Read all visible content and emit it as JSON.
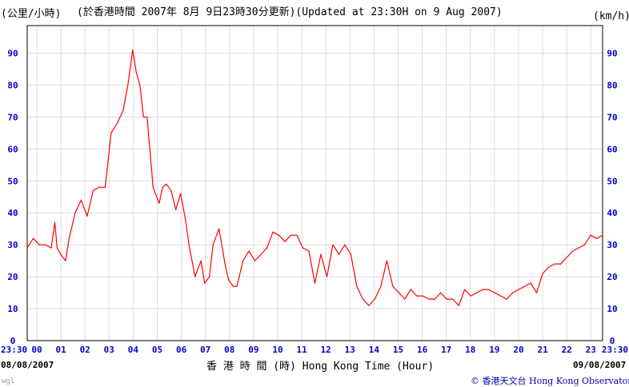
{
  "header": {
    "unit_left": "(公里/小時)",
    "title": "(於香港時間 2007年 8月 9日23時30分更新)(Updated at 23:30H on 9 Aug 2007)",
    "unit_right": "(km/h)"
  },
  "footer": {
    "date_left": "08/08/2007",
    "date_right": "09/08/2007",
    "xlabel": "香 港 時 間 (時) Hong Kong Time (Hour)",
    "credit": "© 香港天文台 Hong Kong Observatory",
    "tag": "wgl"
  },
  "colors": {
    "line": "#ff0000",
    "ticks": "#0000cc",
    "grid": "#dddddd"
  },
  "chart_data": {
    "type": "line",
    "title": "(於香港時間 2007年 8月 9日23時30分更新)(Updated at 23:30H on 9 Aug 2007)",
    "xlabel": "香 港 時 間 (時) Hong Kong Time (Hour)",
    "ylabel": "(公里/小時) / (km/h)",
    "ylim": [
      0,
      95
    ],
    "xlim": [
      0,
      24
    ],
    "grid": true,
    "x_tick_labels": [
      "23:30",
      "00",
      "01",
      "02",
      "03",
      "04",
      "05",
      "06",
      "07",
      "08",
      "09",
      "10",
      "11",
      "12",
      "13",
      "14",
      "15",
      "16",
      "17",
      "18",
      "19",
      "20",
      "21",
      "22",
      "23",
      "23:30"
    ],
    "y_ticks": [
      0,
      10,
      20,
      30,
      40,
      50,
      60,
      70,
      80,
      90
    ],
    "series": [
      {
        "x": [
          0,
          0.25,
          0.5,
          0.75,
          1.0,
          1.15,
          1.25,
          1.4,
          1.6,
          1.75,
          2.0,
          2.25,
          2.5,
          2.6,
          2.75,
          3.0,
          3.25,
          3.5,
          3.75,
          4.0,
          4.2,
          4.4,
          4.55,
          4.7,
          4.85,
          5.0,
          5.25,
          5.5,
          5.65,
          5.8,
          6.0,
          6.2,
          6.4,
          6.6,
          6.75,
          7.0,
          7.25,
          7.4,
          7.6,
          7.75,
          8.0,
          8.25,
          8.4,
          8.6,
          8.75,
          9.0,
          9.25,
          9.5,
          9.75,
          10.0,
          10.25,
          10.5,
          10.75,
          11.0,
          11.25,
          11.5,
          11.75,
          12.0,
          12.25,
          12.5,
          12.75,
          13.0,
          13.25,
          13.5,
          13.75,
          14.0,
          14.25,
          14.5,
          14.75,
          15.0,
          15.25,
          15.5,
          15.75,
          16.0,
          16.25,
          16.5,
          16.75,
          17.0,
          17.25,
          17.5,
          17.75,
          18.0,
          18.25,
          18.5,
          18.75,
          19.0,
          19.25,
          19.5,
          19.75,
          20.0,
          20.25,
          20.5,
          20.75,
          21.0,
          21.25,
          21.5,
          21.75,
          22.0,
          22.25,
          22.5,
          22.75,
          23.0,
          23.25,
          23.5,
          23.75,
          24.0
        ],
        "values": [
          29,
          32,
          30,
          30,
          29,
          37,
          29,
          27,
          25,
          32,
          40,
          44,
          39,
          42,
          47,
          48,
          48,
          65,
          68,
          72,
          80,
          91,
          84,
          80,
          70,
          70,
          48,
          43,
          48,
          49,
          47,
          41,
          46,
          38,
          30,
          20,
          25,
          18,
          20,
          30,
          35,
          24,
          19,
          17,
          17,
          25,
          28,
          25,
          27,
          29,
          34,
          33,
          31,
          33,
          33,
          29,
          28,
          18,
          27,
          20,
          30,
          27,
          30,
          27,
          17,
          13,
          11,
          13,
          17,
          25,
          17,
          15,
          13,
          16,
          14,
          14,
          13,
          13,
          15,
          13,
          13,
          11,
          16,
          14,
          15,
          16,
          16,
          15,
          14,
          13,
          15,
          16,
          17,
          18,
          15,
          21,
          23,
          24,
          24,
          26,
          28,
          29,
          30,
          33,
          32,
          33
        ]
      }
    ]
  }
}
